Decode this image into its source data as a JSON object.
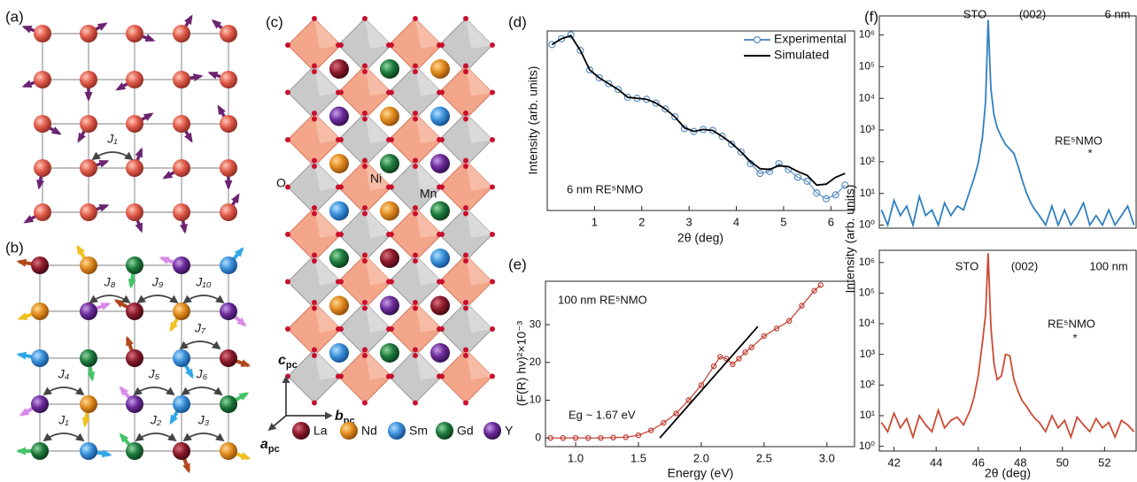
{
  "panels": {
    "a": {
      "label": "(a)",
      "coupling": "J₁"
    },
    "b": {
      "label": "(b)",
      "couplings": [
        "J₈",
        "J₉",
        "J₁₀",
        "J₇",
        "J₄",
        "J₅",
        "J₆",
        "J₁",
        "J₂",
        "J₃"
      ]
    },
    "c": {
      "label": "(c)",
      "site_labels": [
        "O",
        "Ni",
        "Mn"
      ],
      "axes": [
        {
          "letter": "c",
          "subscript": "pc"
        },
        {
          "letter": "b",
          "subscript": "pc"
        },
        {
          "letter": "a",
          "subscript": "pc"
        }
      ],
      "legend": [
        "La",
        "Nd",
        "Sm",
        "Gd",
        "Y"
      ]
    }
  },
  "chart_data": [
    {
      "type": "line",
      "panel": "(d)",
      "xlabel": "2θ (deg)",
      "ylabel": "Intensity (arb. units)",
      "annotations": [
        "6 nm RE⁵NMO"
      ],
      "legend": "upper right",
      "x": [
        0.1,
        0.3,
        0.5,
        0.7,
        0.9,
        1.1,
        1.3,
        1.5,
        1.7,
        1.9,
        2.1,
        2.3,
        2.5,
        2.7,
        2.9,
        3.1,
        3.3,
        3.5,
        3.7,
        3.9,
        4.1,
        4.3,
        4.5,
        4.7,
        4.9,
        5.1,
        5.3,
        5.5,
        5.7,
        5.9,
        6.1,
        6.3
      ],
      "series": [
        {
          "name": "Experimental",
          "color": "#5b8fc4",
          "marker": "circle",
          "values": [
            9.3,
            9.6,
            9.8,
            9.0,
            8.0,
            7.6,
            7.3,
            7.0,
            6.6,
            6.55,
            6.5,
            6.3,
            6.0,
            5.6,
            5.0,
            4.85,
            4.95,
            4.9,
            4.6,
            4.2,
            3.8,
            3.2,
            2.7,
            2.8,
            3.2,
            2.9,
            2.5,
            2.3,
            1.7,
            1.4,
            1.6,
            2.1
          ]
        },
        {
          "name": "Simulated",
          "color": "#000000",
          "values": [
            9.3,
            9.6,
            9.75,
            9.0,
            8.0,
            7.6,
            7.3,
            7.0,
            6.6,
            6.55,
            6.5,
            6.3,
            6.0,
            5.6,
            5.05,
            4.85,
            4.95,
            4.9,
            4.6,
            4.25,
            3.8,
            3.3,
            2.95,
            2.9,
            3.1,
            3.05,
            2.8,
            2.6,
            2.1,
            2.15,
            2.5,
            2.7
          ]
        }
      ],
      "xlim": [
        0,
        6.5
      ],
      "xticks": [
        1,
        2,
        3,
        4,
        5,
        6
      ],
      "ylim": [
        0.8,
        10
      ]
    },
    {
      "type": "line",
      "panel": "(e)",
      "xlabel": "Energy (eV)",
      "ylabel": "(F(R) hν)²×10⁻³",
      "annotations": [
        "100 nm RE⁵NMO",
        "Eg ~ 1.67 eV"
      ],
      "series": [
        {
          "color": "#c0392b",
          "marker": "circle",
          "x": [
            0.8,
            0.9,
            1.0,
            1.1,
            1.2,
            1.3,
            1.4,
            1.5,
            1.6,
            1.7,
            1.8,
            1.9,
            2.0,
            2.1,
            2.15,
            2.2,
            2.25,
            2.3,
            2.35,
            2.4,
            2.5,
            2.6,
            2.7,
            2.8,
            2.9,
            2.95
          ],
          "values": [
            0,
            0,
            0,
            0,
            0,
            0.1,
            0.2,
            0.7,
            2,
            4,
            6.5,
            10,
            14,
            19,
            21.5,
            21,
            19.5,
            21,
            22.7,
            24,
            27,
            29,
            31,
            35,
            39,
            40.5
          ]
        },
        {
          "color": "#000000",
          "x": [
            1.67,
            2.45
          ],
          "values": [
            0,
            29.5
          ]
        }
      ],
      "xlim": [
        0.76,
        3.22
      ],
      "xticks": [
        {
          "value": 1,
          "label": "1.0"
        },
        1.5,
        {
          "value": 2,
          "label": "2.0"
        },
        2.5,
        {
          "value": 3,
          "label": "3.0"
        }
      ],
      "ylim": [
        -2.3,
        41.5
      ],
      "yticks": [
        0,
        10,
        20,
        30
      ]
    },
    {
      "type": "line",
      "panel": "(f)",
      "ylabel": "Intensity (arb. units)",
      "annotations": [
        "STO",
        "(002)",
        "6 nm",
        "RE⁵NMO",
        "*"
      ],
      "log_y": true,
      "x": [
        41.4,
        41.7,
        42.0,
        42.3,
        42.6,
        42.9,
        43.2,
        43.5,
        43.8,
        44.1,
        44.4,
        44.7,
        45.0,
        45.3,
        45.6,
        45.8,
        46.0,
        46.2,
        46.35,
        46.47,
        46.6,
        46.75,
        46.9,
        47.1,
        47.3,
        47.5,
        47.7,
        47.9,
        48.1,
        48.3,
        48.5,
        48.7,
        48.9,
        49.2,
        49.5,
        49.8,
        50.1,
        50.4,
        50.7,
        51.0,
        51.3,
        51.6,
        51.9,
        52.2,
        52.5,
        52.8,
        53.1,
        53.4
      ],
      "series": [
        {
          "color": "#2f7fc0",
          "values": [
            3,
            1,
            6,
            2,
            4,
            1,
            8,
            2,
            3,
            1,
            5,
            2,
            4,
            3,
            12,
            30,
            90,
            600,
            8000,
            3000000,
            20000,
            3000,
            1200,
            600,
            350,
            250,
            180,
            70,
            25,
            10,
            5,
            3,
            2,
            1,
            4,
            1,
            3,
            1,
            2,
            5,
            1,
            2,
            1,
            3,
            1,
            2,
            4,
            1
          ]
        }
      ],
      "xlim": [
        41.3,
        53.5
      ],
      "ylim": [
        0.8,
        4000000
      ],
      "yticks": [
        {
          "value": 1,
          "label": "10⁰"
        },
        {
          "value": 10,
          "label": "10¹"
        },
        {
          "value": 100,
          "label": "10²"
        },
        {
          "value": 1000,
          "label": "10³"
        },
        {
          "value": 10000,
          "label": "10⁴"
        },
        {
          "value": 100000,
          "label": "10⁵"
        },
        {
          "value": 1000000,
          "label": "10⁶"
        }
      ]
    },
    {
      "type": "line",
      "xlabel": "2θ (deg)",
      "annotations": [
        "STO",
        "(002)",
        "100 nm",
        "RE⁵NMO",
        "*"
      ],
      "log_y": true,
      "x": [
        41.4,
        41.7,
        42.0,
        42.3,
        42.6,
        42.9,
        43.2,
        43.5,
        43.8,
        44.1,
        44.4,
        44.7,
        45.0,
        45.3,
        45.6,
        45.8,
        46.0,
        46.2,
        46.35,
        46.47,
        46.6,
        46.75,
        46.9,
        47.1,
        47.3,
        47.5,
        47.7,
        47.9,
        48.1,
        48.3,
        48.5,
        48.7,
        48.9,
        49.2,
        49.5,
        49.8,
        50.1,
        50.4,
        50.7,
        51.0,
        51.3,
        51.6,
        51.9,
        52.2,
        52.5,
        52.8,
        53.1,
        53.4
      ],
      "series": [
        {
          "color": "#cc4a33",
          "values": [
            6,
            3,
            12,
            4,
            8,
            2,
            10,
            5,
            3,
            15,
            4,
            7,
            9,
            5,
            14,
            40,
            200,
            2500,
            20000,
            2000000,
            8000,
            500,
            150,
            200,
            1000,
            900,
            150,
            60,
            30,
            20,
            12,
            8,
            6,
            3,
            10,
            4,
            7,
            2,
            9,
            5,
            3,
            8,
            4,
            6,
            2,
            7,
            5,
            3
          ]
        }
      ],
      "xlim": [
        41.3,
        53.5
      ],
      "xticks": [
        42,
        44,
        46,
        48,
        50,
        52
      ],
      "ylim": [
        0.7,
        2500000
      ],
      "yticks": [
        {
          "value": 1,
          "label": "10⁰"
        },
        {
          "value": 10,
          "label": "10¹"
        },
        {
          "value": 100,
          "label": "10²"
        },
        {
          "value": 1000,
          "label": "10³"
        },
        {
          "value": 10000,
          "label": "10⁴"
        },
        {
          "value": 100000,
          "label": "10⁵"
        },
        {
          "value": 1000000,
          "label": "10⁶"
        }
      ]
    }
  ]
}
